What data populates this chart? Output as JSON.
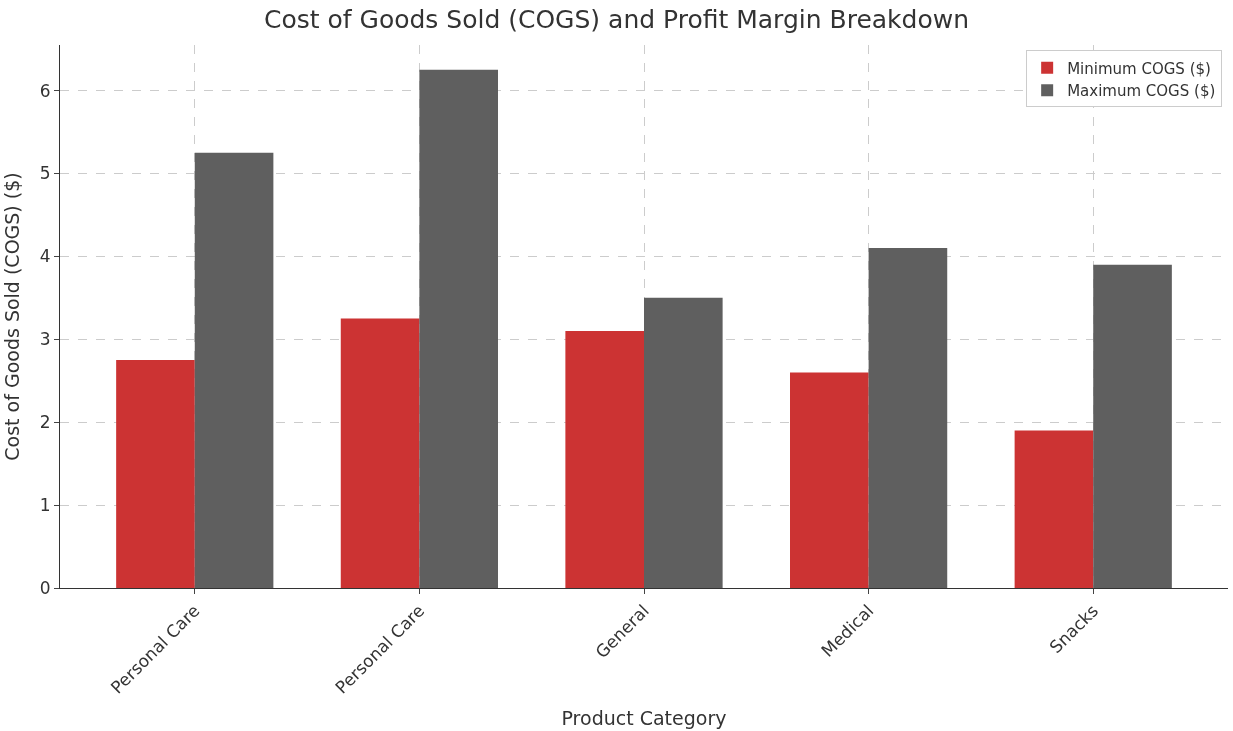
{
  "chart_data": {
    "type": "bar",
    "title": "Cost of Goods Sold (COGS) and Profit Margin Breakdown",
    "xlabel": "Product Category",
    "ylabel": "Cost of Goods Sold (COGS) ($)",
    "categories": [
      "Personal Care",
      "Personal Care",
      "General",
      "Medical",
      "Snacks"
    ],
    "series": [
      {
        "name": "Minimum COGS ($)",
        "color": "#cc3333",
        "values": [
          2.75,
          3.25,
          3.1,
          2.6,
          1.9
        ]
      },
      {
        "name": "Maximum COGS ($)",
        "color": "#5f5f5f",
        "values": [
          5.25,
          6.25,
          3.5,
          4.1,
          3.9
        ]
      }
    ],
    "ylim": [
      0,
      6.55
    ],
    "yticks": [
      0,
      1,
      2,
      3,
      4,
      5,
      6
    ],
    "grid": true,
    "legend": "top right"
  }
}
